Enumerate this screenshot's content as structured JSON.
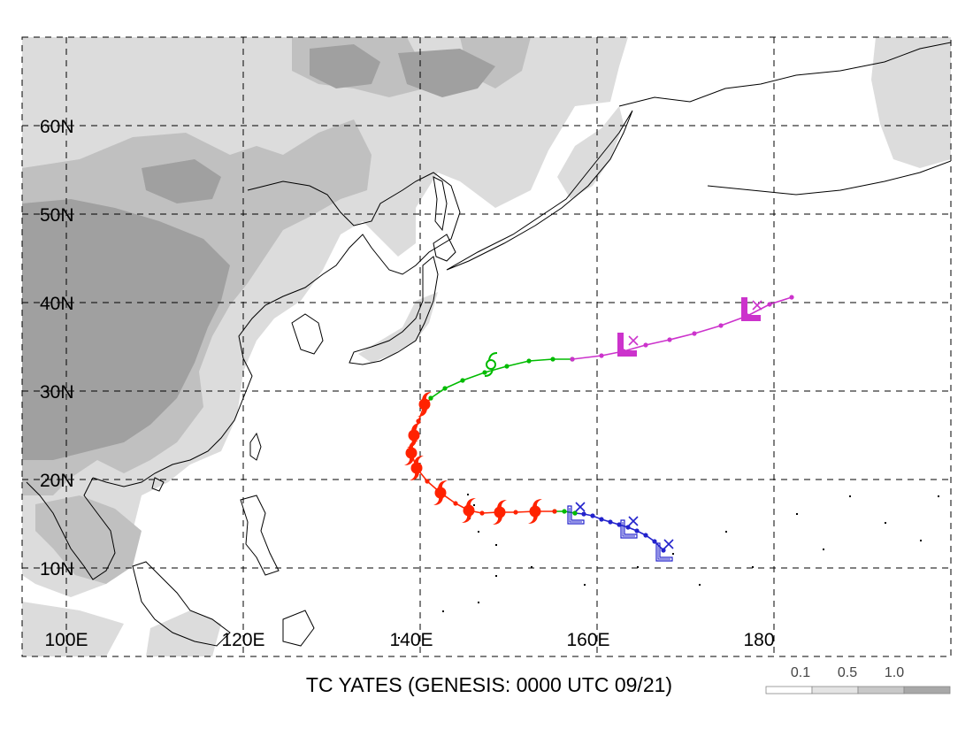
{
  "title": "TC YATES (GENESIS: 0000 UTC 09/21)",
  "lat_labels": [
    "60N",
    "50N",
    "40N",
    "30N",
    "20N",
    "10N"
  ],
  "lon_labels": [
    "100E",
    "120E",
    "140E",
    "160E",
    "180"
  ],
  "legend": {
    "labels": [
      "0.1",
      "0.5",
      "1.0"
    ],
    "colors": [
      "#ffffff",
      "#e4e4e4",
      "#c8c8c8",
      "#a8a8a8"
    ]
  },
  "colors": {
    "land_light": "#dcdcdc",
    "land_mid": "#c0c0c0",
    "land_dark": "#a0a0a0",
    "phase_depression": "#2222cc",
    "phase_storm": "#00bb00",
    "phase_typhoon": "#ff2200",
    "phase_extratropical": "#cc33cc"
  },
  "track": {
    "phases": [
      {
        "phase": "depression",
        "color": "#2222cc",
        "points": [
          [
            167.5,
            12.0
          ],
          [
            166.5,
            13.0
          ],
          [
            165.5,
            13.7
          ],
          [
            164.5,
            14.2
          ],
          [
            163.5,
            14.6
          ],
          [
            162.5,
            14.9
          ],
          [
            161.5,
            15.2
          ],
          [
            160.5,
            15.5
          ],
          [
            159.5,
            15.9
          ],
          [
            158.5,
            16.1
          ],
          [
            157.5,
            16.2
          ]
        ]
      },
      {
        "phase": "storm",
        "color": "#00bb00",
        "points": [
          [
            157.5,
            16.2
          ],
          [
            156.3,
            16.4
          ],
          [
            155.2,
            16.4
          ]
        ]
      },
      {
        "phase": "typhoon",
        "color": "#ff2200",
        "points": [
          [
            155.2,
            16.4
          ],
          [
            153.0,
            16.4
          ],
          [
            150.8,
            16.3
          ],
          [
            148.8,
            16.3
          ],
          [
            147.0,
            16.2
          ],
          [
            145.5,
            16.5
          ],
          [
            144.0,
            17.3
          ],
          [
            142.3,
            18.5
          ],
          [
            140.8,
            19.8
          ],
          [
            139.6,
            21.3
          ],
          [
            139.0,
            23.0
          ],
          [
            139.2,
            24.8
          ],
          [
            139.8,
            26.6
          ],
          [
            140.4,
            28.2
          ],
          [
            141.2,
            29.2
          ]
        ]
      },
      {
        "phase": "storm",
        "color": "#00bb00",
        "points": [
          [
            141.2,
            29.2
          ],
          [
            142.8,
            30.3
          ],
          [
            144.8,
            31.2
          ],
          [
            147.3,
            32.1
          ],
          [
            149.8,
            32.8
          ],
          [
            152.3,
            33.4
          ],
          [
            155.0,
            33.6
          ],
          [
            157.2,
            33.6
          ]
        ]
      },
      {
        "phase": "extratropical",
        "color": "#cc33cc",
        "points": [
          [
            157.2,
            33.6
          ],
          [
            160.5,
            34.0
          ],
          [
            163.0,
            34.5
          ],
          [
            165.5,
            35.2
          ],
          [
            168.2,
            35.8
          ],
          [
            171.0,
            36.5
          ],
          [
            174.0,
            37.4
          ],
          [
            177.0,
            38.5
          ],
          [
            179.5,
            39.8
          ],
          [
            182.0,
            40.6
          ]
        ]
      }
    ],
    "symbols": [
      {
        "type": "L",
        "color": "#2222cc",
        "lon": 157.5,
        "lat": 16.2
      },
      {
        "type": "L",
        "color": "#2222cc",
        "lon": 163.5,
        "lat": 14.6
      },
      {
        "type": "L",
        "color": "#2222cc",
        "lon": 167.5,
        "lat": 12.0
      },
      {
        "type": "tropical-storm",
        "color": "#00bb00",
        "lon": 148.0,
        "lat": 33.0
      },
      {
        "type": "typhoon",
        "color": "#ff2200",
        "lon": 153.0,
        "lat": 16.4
      },
      {
        "type": "typhoon",
        "color": "#ff2200",
        "lon": 149.0,
        "lat": 16.3
      },
      {
        "type": "typhoon",
        "color": "#ff2200",
        "lon": 145.5,
        "lat": 16.5
      },
      {
        "type": "typhoon",
        "color": "#ff2200",
        "lon": 142.3,
        "lat": 18.5
      },
      {
        "type": "typhoon",
        "color": "#ff2200",
        "lon": 139.6,
        "lat": 21.3
      },
      {
        "type": "typhoon",
        "color": "#ff2200",
        "lon": 139.0,
        "lat": 23.0
      },
      {
        "type": "typhoon",
        "color": "#ff2200",
        "lon": 139.3,
        "lat": 25.0
      },
      {
        "type": "typhoon",
        "color": "#ff2200",
        "lon": 140.5,
        "lat": 28.5
      },
      {
        "type": "L",
        "color": "#cc33cc",
        "lon": 163.5,
        "lat": 35.0
      },
      {
        "type": "L",
        "color": "#cc33cc",
        "lon": 177.5,
        "lat": 39.0
      }
    ]
  }
}
